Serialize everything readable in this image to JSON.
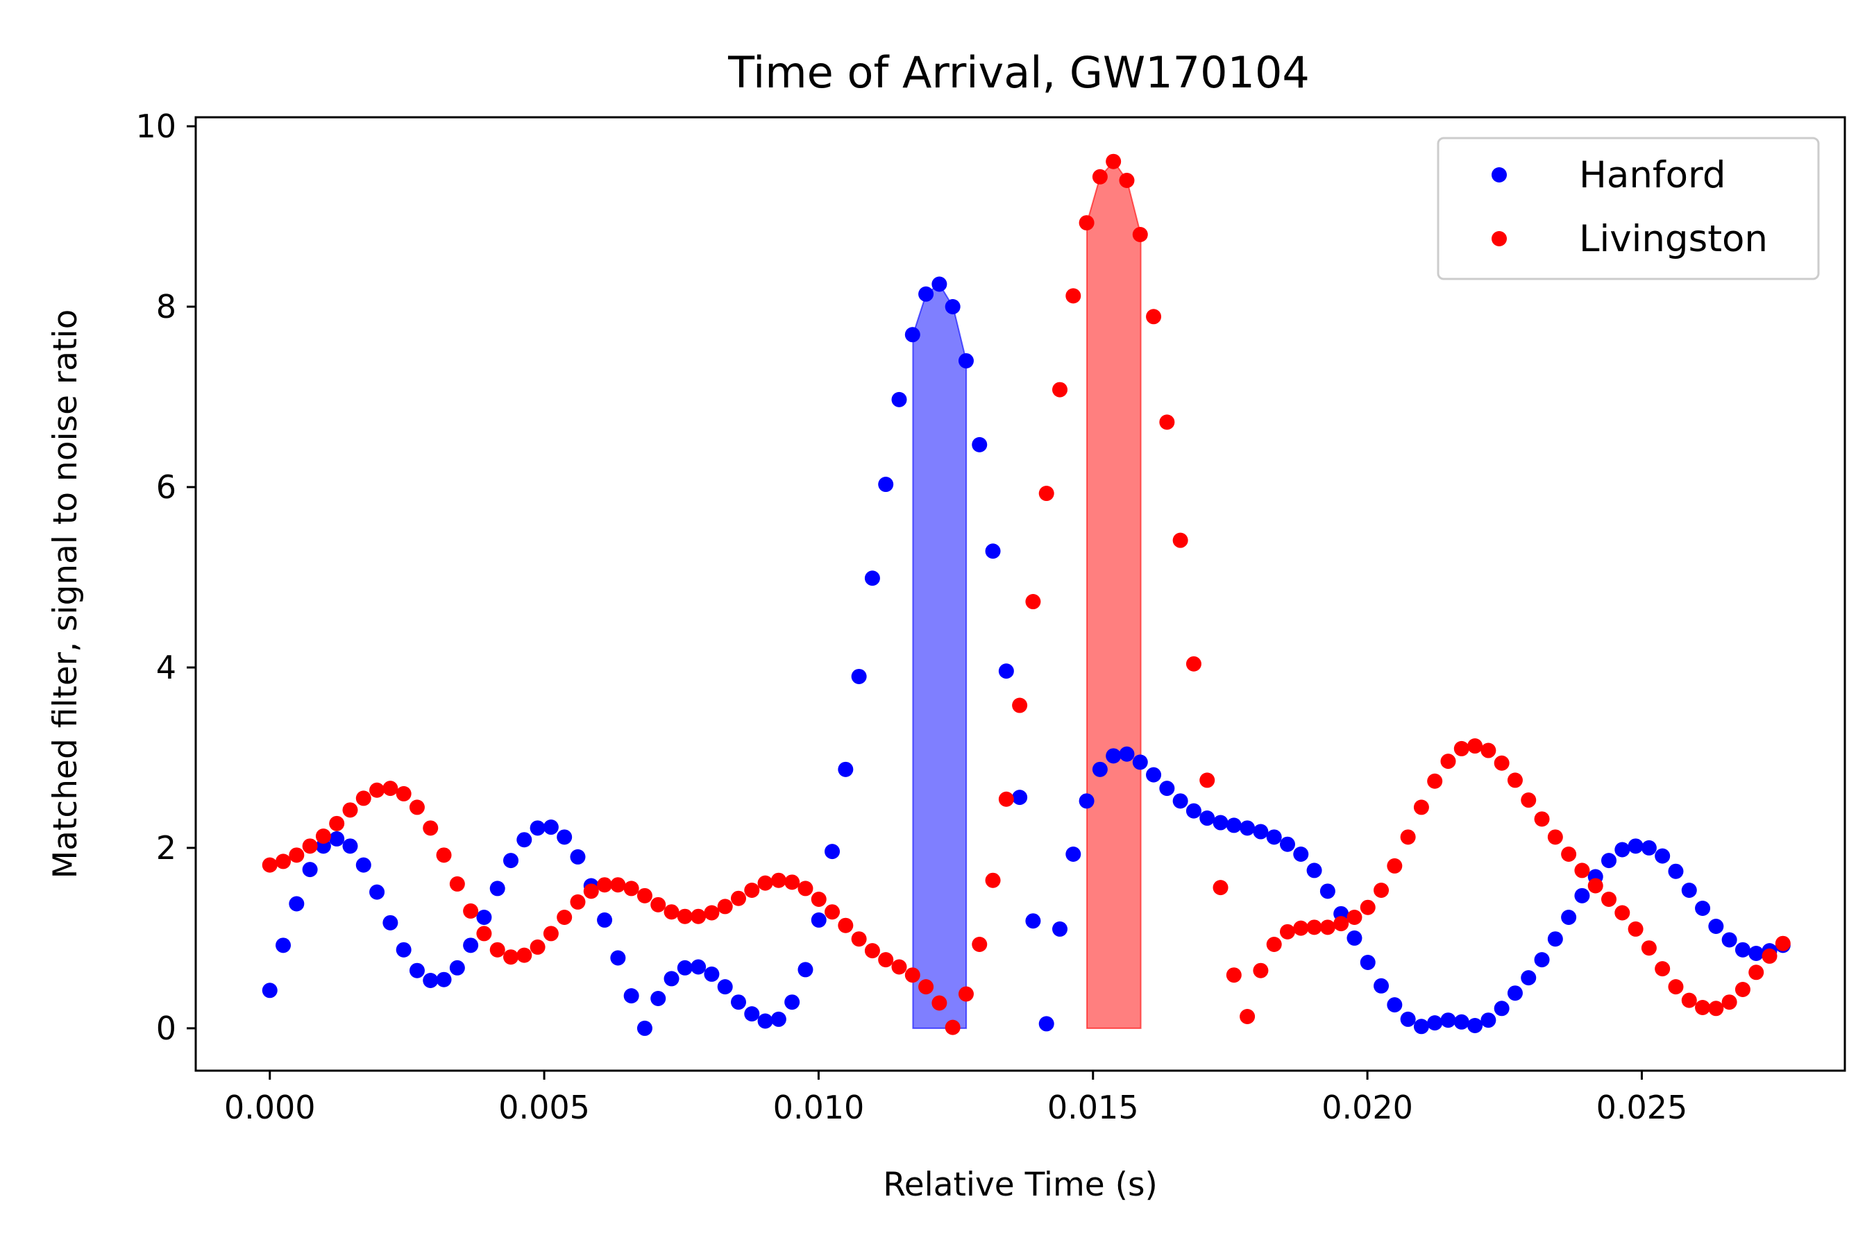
{
  "chart_data": {
    "type": "scatter",
    "title": "Time of Arrival, GW170104",
    "xlabel": "Relative Time (s)",
    "ylabel": "Matched filter, signal to noise ratio",
    "xlim": [
      -0.00135,
      0.0287
    ],
    "ylim": [
      -0.47,
      10.1
    ],
    "xticks": [
      0.0,
      0.005,
      0.01,
      0.015,
      0.02,
      0.025
    ],
    "xtick_labels": [
      "0.000",
      "0.005",
      "0.010",
      "0.015",
      "0.020",
      "0.025"
    ],
    "yticks": [
      0,
      2,
      4,
      6,
      8,
      10
    ],
    "ytick_labels": [
      "0",
      "2",
      "4",
      "6",
      "8",
      "10"
    ],
    "grid": false,
    "legend": {
      "position": "top-right",
      "entries": [
        "Hanford",
        "Livingston"
      ]
    },
    "x_step": 0.000244,
    "series": [
      {
        "name": "Hanford",
        "color": "#0000ff",
        "values": [
          0.42,
          0.92,
          1.38,
          1.76,
          2.02,
          2.1,
          2.02,
          1.81,
          1.51,
          1.17,
          0.87,
          0.64,
          0.53,
          0.54,
          0.67,
          0.92,
          1.23,
          1.55,
          1.86,
          2.09,
          2.22,
          2.23,
          2.12,
          1.9,
          1.58,
          1.2,
          0.78,
          0.36,
          0.0,
          0.33,
          0.55,
          0.67,
          0.68,
          0.6,
          0.46,
          0.29,
          0.16,
          0.08,
          0.1,
          0.29,
          0.65,
          1.2,
          1.96,
          2.87,
          3.9,
          4.99,
          6.03,
          6.97,
          7.69,
          8.14,
          8.25,
          8.0,
          7.4,
          6.47,
          5.29,
          3.96,
          2.56,
          1.19,
          0.05,
          1.1,
          1.93,
          2.52,
          2.87,
          3.02,
          3.04,
          2.95,
          2.81,
          2.66,
          2.52,
          2.41,
          2.33,
          2.28,
          2.25,
          2.22,
          2.18,
          2.12,
          2.04,
          1.93,
          1.75,
          1.52,
          1.27,
          1.0,
          0.73,
          0.47,
          0.26,
          0.1,
          0.02,
          0.06,
          0.09,
          0.07,
          0.03,
          0.09,
          0.22,
          0.39,
          0.56,
          0.76,
          0.99,
          1.23,
          1.47,
          1.68,
          1.86,
          1.98,
          2.02,
          2.0,
          1.91,
          1.74,
          1.53,
          1.33,
          1.13,
          0.98,
          0.87,
          0.83,
          0.86,
          0.92
        ]
      },
      {
        "name": "Livingston",
        "color": "#ff0000",
        "values": [
          1.81,
          1.85,
          1.92,
          2.02,
          2.13,
          2.27,
          2.42,
          2.55,
          2.64,
          2.66,
          2.6,
          2.45,
          2.22,
          1.92,
          1.6,
          1.3,
          1.05,
          0.87,
          0.79,
          0.81,
          0.9,
          1.05,
          1.23,
          1.4,
          1.52,
          1.59,
          1.59,
          1.55,
          1.47,
          1.37,
          1.29,
          1.24,
          1.24,
          1.28,
          1.35,
          1.44,
          1.53,
          1.61,
          1.64,
          1.62,
          1.55,
          1.43,
          1.29,
          1.14,
          0.99,
          0.86,
          0.76,
          0.68,
          0.59,
          0.46,
          0.28,
          0.01,
          0.38,
          0.93,
          1.64,
          2.54,
          3.58,
          4.73,
          5.93,
          7.08,
          8.12,
          8.93,
          9.44,
          9.61,
          9.4,
          8.8,
          7.89,
          6.72,
          5.41,
          4.04,
          2.75,
          1.56,
          0.59,
          0.13,
          0.64,
          0.93,
          1.07,
          1.11,
          1.12,
          1.12,
          1.16,
          1.23,
          1.34,
          1.53,
          1.8,
          2.12,
          2.45,
          2.74,
          2.96,
          3.1,
          3.13,
          3.08,
          2.94,
          2.75,
          2.53,
          2.32,
          2.12,
          1.93,
          1.75,
          1.58,
          1.43,
          1.28,
          1.1,
          0.89,
          0.66,
          0.46,
          0.31,
          0.23,
          0.22,
          0.29,
          0.43,
          0.62,
          0.8,
          0.94
        ]
      }
    ],
    "fills": [
      {
        "series": "Hanford",
        "color": "#0000ff",
        "opacity": 0.5,
        "x": [
          0.01172,
          0.01196,
          0.0122,
          0.01245,
          0.01269
        ],
        "y": [
          7.69,
          8.14,
          8.25,
          8.0,
          7.4
        ]
      },
      {
        "series": "Livingston",
        "color": "#ff0000",
        "opacity": 0.5,
        "x": [
          0.01489,
          0.01513,
          0.01538,
          0.01562,
          0.01587
        ],
        "y": [
          8.93,
          9.44,
          9.61,
          9.4,
          8.8
        ]
      }
    ]
  }
}
